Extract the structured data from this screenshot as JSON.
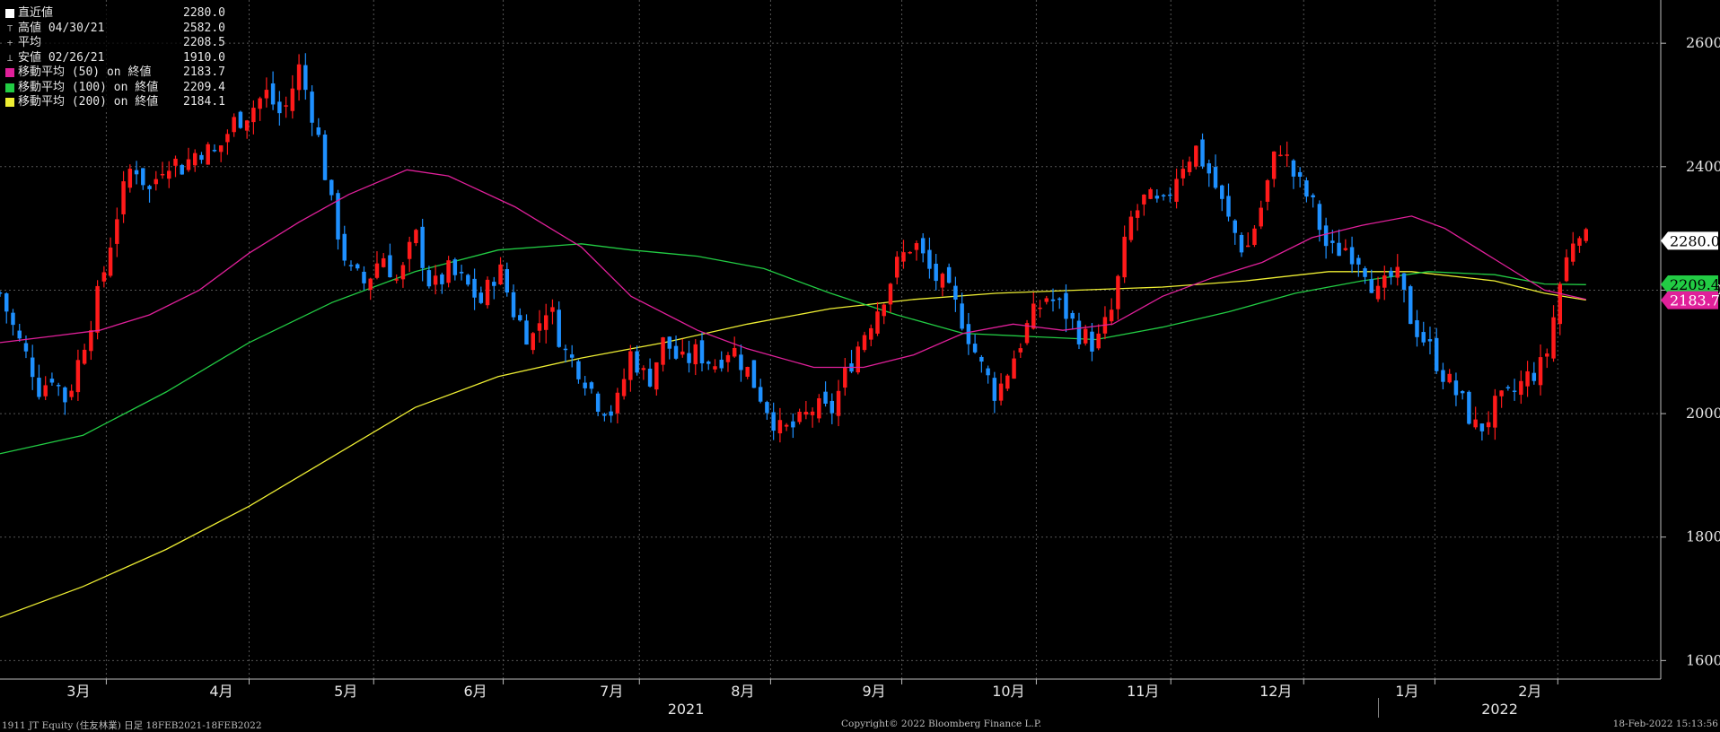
{
  "legend": [
    {
      "marker": "□",
      "swatch": "#ffffff",
      "label": "直近値",
      "value": "2280.0"
    },
    {
      "marker": "⊤",
      "swatch": "",
      "label": "高値 04/30/21",
      "value": "2582.0"
    },
    {
      "marker": "+",
      "swatch": "",
      "label": "平均",
      "value": "2208.5"
    },
    {
      "marker": "⊥",
      "swatch": "",
      "label": "安値 02/26/21",
      "value": "1910.0"
    },
    {
      "marker": "",
      "swatch": "#e0209a",
      "label": "移動平均 (50) on 終値",
      "value": "2183.7"
    },
    {
      "marker": "",
      "swatch": "#22cc44",
      "label": "移動平均 (100) on 終値",
      "value": "2209.4"
    },
    {
      "marker": "",
      "swatch": "#eeee33",
      "label": "移動平均 (200) on 終値",
      "value": "2184.1"
    }
  ],
  "footer": {
    "left": "1911 JT Equity (住友林業)  日足 18FEB2021-18FEB2022",
    "center": "Copyright© 2022 Bloomberg Finance L.P.",
    "right": "18-Feb-2022 15:13:56"
  },
  "chart_data": {
    "type": "candlestick",
    "colors": {
      "up": "#ff1a1a",
      "down": "#1e90ff",
      "ma50": "#e0209a",
      "ma100": "#22cc44",
      "ma200": "#eeee33",
      "background": "#000000",
      "grid": "#555555"
    },
    "ylim": [
      1570,
      2670
    ],
    "yticks": [
      1600,
      1800,
      2000,
      2200,
      2400,
      2600
    ],
    "month_ticks": [
      {
        "label": "3月",
        "pos": 0.064
      },
      {
        "label": "4月",
        "pos": 0.15
      },
      {
        "label": "5月",
        "pos": 0.225
      },
      {
        "label": "6月",
        "pos": 0.303
      },
      {
        "label": "7月",
        "pos": 0.385
      },
      {
        "label": "8月",
        "pos": 0.464
      },
      {
        "label": "9月",
        "pos": 0.543
      },
      {
        "label": "10月",
        "pos": 0.624
      },
      {
        "label": "11月",
        "pos": 0.705
      },
      {
        "label": "12月",
        "pos": 0.785
      },
      {
        "label": "1月",
        "pos": 0.864
      },
      {
        "label": "2月",
        "pos": 0.938
      }
    ],
    "years": [
      {
        "label": "2021",
        "pos": 0.413
      },
      {
        "label": "2022",
        "pos": 0.903
      }
    ],
    "tags": [
      {
        "value": 2280.0,
        "text": "2280.0",
        "color": "#ffffff",
        "textColor": "#000000"
      },
      {
        "value": 2209.4,
        "text": "2209.4",
        "color": "#22cc44",
        "textColor": "#000000"
      },
      {
        "value": 2183.7,
        "text": "2183.7",
        "color": "#e0209a",
        "textColor": "#ffffff"
      }
    ],
    "ma50": [
      [
        0,
        2115
      ],
      [
        0.03,
        2125
      ],
      [
        0.06,
        2135
      ],
      [
        0.09,
        2160
      ],
      [
        0.12,
        2200
      ],
      [
        0.15,
        2260
      ],
      [
        0.18,
        2310
      ],
      [
        0.21,
        2355
      ],
      [
        0.245,
        2395
      ],
      [
        0.27,
        2385
      ],
      [
        0.31,
        2335
      ],
      [
        0.35,
        2270
      ],
      [
        0.38,
        2190
      ],
      [
        0.42,
        2135
      ],
      [
        0.45,
        2105
      ],
      [
        0.49,
        2075
      ],
      [
        0.52,
        2075
      ],
      [
        0.55,
        2095
      ],
      [
        0.58,
        2130
      ],
      [
        0.61,
        2145
      ],
      [
        0.64,
        2135
      ],
      [
        0.67,
        2145
      ],
      [
        0.7,
        2190
      ],
      [
        0.73,
        2220
      ],
      [
        0.76,
        2245
      ],
      [
        0.79,
        2285
      ],
      [
        0.82,
        2305
      ],
      [
        0.85,
        2320
      ],
      [
        0.87,
        2300
      ],
      [
        0.9,
        2250
      ],
      [
        0.93,
        2200
      ],
      [
        0.955,
        2185
      ]
    ],
    "ma100": [
      [
        0,
        1935
      ],
      [
        0.05,
        1965
      ],
      [
        0.1,
        2035
      ],
      [
        0.15,
        2115
      ],
      [
        0.2,
        2180
      ],
      [
        0.25,
        2230
      ],
      [
        0.3,
        2265
      ],
      [
        0.35,
        2275
      ],
      [
        0.38,
        2265
      ],
      [
        0.42,
        2255
      ],
      [
        0.46,
        2235
      ],
      [
        0.5,
        2195
      ],
      [
        0.54,
        2160
      ],
      [
        0.58,
        2130
      ],
      [
        0.62,
        2125
      ],
      [
        0.66,
        2120
      ],
      [
        0.7,
        2140
      ],
      [
        0.74,
        2165
      ],
      [
        0.78,
        2195
      ],
      [
        0.82,
        2215
      ],
      [
        0.86,
        2230
      ],
      [
        0.9,
        2225
      ],
      [
        0.93,
        2210
      ],
      [
        0.955,
        2209
      ]
    ],
    "ma200": [
      [
        0,
        1670
      ],
      [
        0.05,
        1720
      ],
      [
        0.1,
        1780
      ],
      [
        0.15,
        1850
      ],
      [
        0.2,
        1930
      ],
      [
        0.25,
        2010
      ],
      [
        0.3,
        2060
      ],
      [
        0.35,
        2090
      ],
      [
        0.4,
        2115
      ],
      [
        0.45,
        2145
      ],
      [
        0.5,
        2170
      ],
      [
        0.55,
        2185
      ],
      [
        0.6,
        2195
      ],
      [
        0.65,
        2200
      ],
      [
        0.7,
        2205
      ],
      [
        0.75,
        2215
      ],
      [
        0.8,
        2230
      ],
      [
        0.85,
        2230
      ],
      [
        0.9,
        2215
      ],
      [
        0.93,
        2195
      ],
      [
        0.955,
        2184
      ]
    ],
    "closes": [
      [
        0.0,
        2195
      ],
      [
        0.01,
        2125
      ],
      [
        0.02,
        2070
      ],
      [
        0.025,
        2030
      ],
      [
        0.03,
        2070
      ],
      [
        0.04,
        2020
      ],
      [
        0.05,
        2110
      ],
      [
        0.06,
        2200
      ],
      [
        0.07,
        2320
      ],
      [
        0.08,
        2410
      ],
      [
        0.09,
        2360
      ],
      [
        0.1,
        2415
      ],
      [
        0.11,
        2400
      ],
      [
        0.12,
        2430
      ],
      [
        0.13,
        2420
      ],
      [
        0.14,
        2470
      ],
      [
        0.15,
        2490
      ],
      [
        0.16,
        2520
      ],
      [
        0.17,
        2480
      ],
      [
        0.18,
        2560
      ],
      [
        0.19,
        2470
      ],
      [
        0.2,
        2330
      ],
      [
        0.21,
        2230
      ],
      [
        0.22,
        2210
      ],
      [
        0.23,
        2260
      ],
      [
        0.24,
        2210
      ],
      [
        0.25,
        2290
      ],
      [
        0.26,
        2200
      ],
      [
        0.27,
        2230
      ],
      [
        0.28,
        2210
      ],
      [
        0.29,
        2180
      ],
      [
        0.3,
        2240
      ],
      [
        0.31,
        2160
      ],
      [
        0.32,
        2120
      ],
      [
        0.33,
        2180
      ],
      [
        0.34,
        2100
      ],
      [
        0.35,
        2070
      ],
      [
        0.36,
        2020
      ],
      [
        0.37,
        2000
      ],
      [
        0.38,
        2100
      ],
      [
        0.39,
        2050
      ],
      [
        0.4,
        2120
      ],
      [
        0.41,
        2080
      ],
      [
        0.42,
        2100
      ],
      [
        0.43,
        2080
      ],
      [
        0.44,
        2110
      ],
      [
        0.45,
        2070
      ],
      [
        0.46,
        2020
      ],
      [
        0.47,
        1970
      ],
      [
        0.48,
        1980
      ],
      [
        0.49,
        2010
      ],
      [
        0.5,
        2000
      ],
      [
        0.51,
        2070
      ],
      [
        0.52,
        2130
      ],
      [
        0.53,
        2180
      ],
      [
        0.54,
        2240
      ],
      [
        0.55,
        2280
      ],
      [
        0.56,
        2230
      ],
      [
        0.57,
        2200
      ],
      [
        0.58,
        2150
      ],
      [
        0.59,
        2080
      ],
      [
        0.6,
        2030
      ],
      [
        0.61,
        2090
      ],
      [
        0.62,
        2150
      ],
      [
        0.63,
        2190
      ],
      [
        0.64,
        2170
      ],
      [
        0.65,
        2130
      ],
      [
        0.66,
        2110
      ],
      [
        0.67,
        2170
      ],
      [
        0.68,
        2310
      ],
      [
        0.69,
        2350
      ],
      [
        0.7,
        2330
      ],
      [
        0.71,
        2400
      ],
      [
        0.72,
        2430
      ],
      [
        0.73,
        2380
      ],
      [
        0.74,
        2310
      ],
      [
        0.75,
        2260
      ],
      [
        0.76,
        2340
      ],
      [
        0.77,
        2440
      ],
      [
        0.78,
        2380
      ],
      [
        0.79,
        2340
      ],
      [
        0.8,
        2260
      ],
      [
        0.81,
        2270
      ],
      [
        0.82,
        2250
      ],
      [
        0.83,
        2190
      ],
      [
        0.84,
        2230
      ],
      [
        0.85,
        2150
      ],
      [
        0.86,
        2110
      ],
      [
        0.87,
        2060
      ],
      [
        0.88,
        2020
      ],
      [
        0.89,
        1970
      ],
      [
        0.9,
        2010
      ],
      [
        0.91,
        2030
      ],
      [
        0.92,
        2060
      ],
      [
        0.93,
        2080
      ],
      [
        0.94,
        2220
      ],
      [
        0.95,
        2310
      ],
      [
        0.955,
        2280
      ]
    ]
  }
}
